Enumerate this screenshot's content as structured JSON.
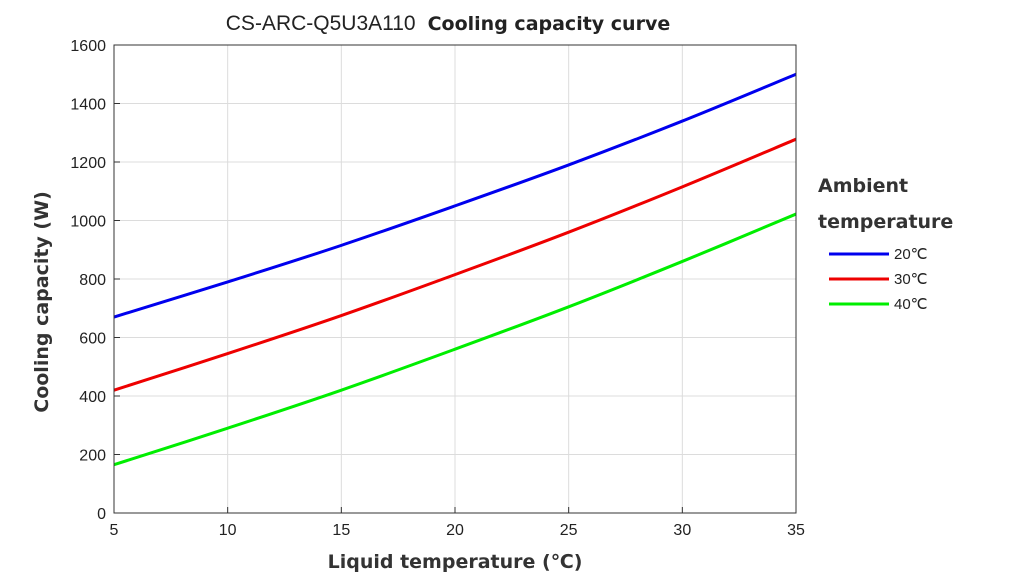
{
  "chart_data": {
    "type": "line",
    "title_model": "CS-ARC-Q5U3A110",
    "title_rest": "Cooling capacity curve",
    "xlabel": "Liquid temperature (℃)",
    "ylabel": "Cooling capacity (W)",
    "xlim": [
      5,
      35
    ],
    "ylim": [
      0,
      1600
    ],
    "xticks": [
      5,
      10,
      15,
      20,
      25,
      30,
      35
    ],
    "yticks": [
      0,
      200,
      400,
      600,
      800,
      1000,
      1200,
      1400,
      1600
    ],
    "grid": true,
    "legend_title_line1": "Ambient",
    "legend_title_line2": "temperature",
    "legend_position": "right",
    "x": [
      5,
      10,
      15,
      20,
      25,
      30,
      35
    ],
    "series": [
      {
        "name": "20℃",
        "color": "#0000ee",
        "values": [
          670,
          790,
          915,
          1050,
          1190,
          1340,
          1500
        ]
      },
      {
        "name": "30℃",
        "color": "#ee0000",
        "values": [
          420,
          545,
          675,
          815,
          960,
          1115,
          1278
        ]
      },
      {
        "name": "40℃",
        "color": "#00ee00",
        "values": [
          165,
          290,
          420,
          560,
          705,
          860,
          1022
        ]
      }
    ]
  }
}
